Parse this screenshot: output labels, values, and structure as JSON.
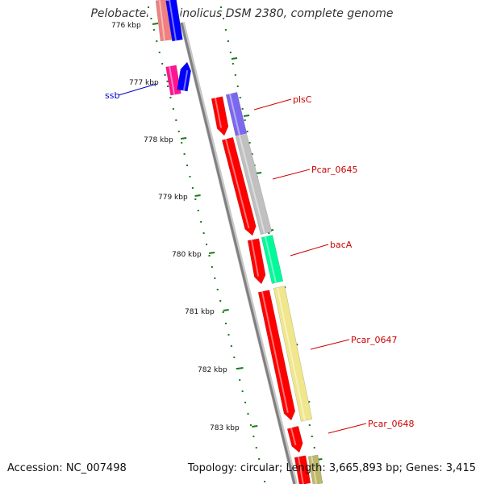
{
  "title": "Pelobacter carbinolicus DSM 2380, complete genome",
  "accession": "Accession: NC_007498",
  "summary": "Topology: circular; Length: 3,665,893 bp; Genes: 3,415",
  "tick_labels": [
    "776 kbp",
    "777 kbp",
    "778 kbp",
    "779 kbp",
    "780 kbp",
    "781 kbp",
    "782 kbp",
    "783 kbp"
  ],
  "gene_labels": [
    {
      "name": "ssb",
      "color": "#0000cc"
    },
    {
      "name": "plsC",
      "color": "#cc0000"
    },
    {
      "name": "Pcar_0645",
      "color": "#cc0000"
    },
    {
      "name": "bacA",
      "color": "#cc0000"
    },
    {
      "name": "Pcar_0647",
      "color": "#cc0000"
    },
    {
      "name": "Pcar_0648",
      "color": "#cc0000"
    }
  ],
  "colors": {
    "backbone": "#808080",
    "ticks": "#1a7a1a",
    "forward_genes": "#ff0000",
    "ssb": "#ff1493",
    "ssb_partner": "#0000ff",
    "plsC": "#7b68ee",
    "Pcar_0645": "#c0c0c0",
    "bacA": "#00fa9a",
    "Pcar_0647": "#f0e68c",
    "tail_gene": "#bdb76b"
  }
}
